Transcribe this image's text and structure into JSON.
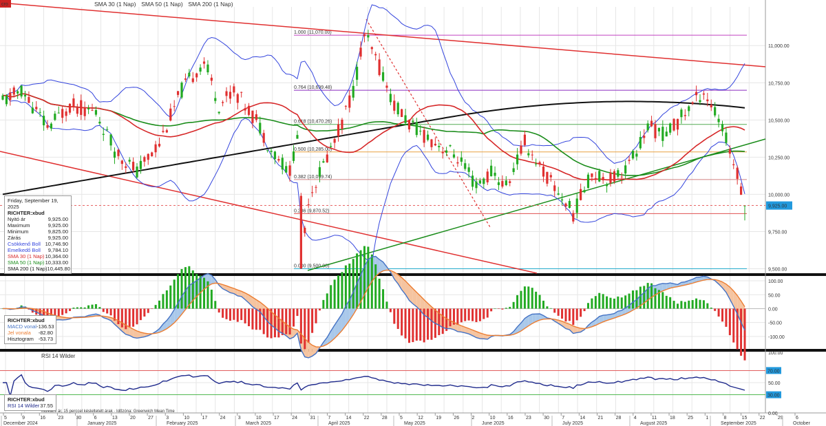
{
  "header": {
    "badge": "cro",
    "indicators": [
      {
        "label": "SMA 30 (1 Nap)",
        "color": "#d62728"
      },
      {
        "label": "SMA 50 (1 Nap)",
        "color": "#1a8c1a"
      },
      {
        "label": "SMA 200 (1 Nap)",
        "color": "#111111"
      }
    ]
  },
  "colors": {
    "up": "#22aa22",
    "down": "#e03030",
    "boll": "#3344dd",
    "sma30": "#d62728",
    "sma50": "#1a8c1a",
    "sma200": "#111111",
    "macd": "#4472c4",
    "signal": "#ec7d31",
    "rsi": "#1f2a8c"
  },
  "price_info": {
    "date": "Friday, September 19, 2025",
    "ticker": "RICHTER:xbud",
    "rows": [
      {
        "label": "Nyitó ár",
        "value": "9,925.00",
        "color": "#222222"
      },
      {
        "label": "Maximum",
        "value": "9,925.00",
        "color": "#222222"
      },
      {
        "label": "Minimum",
        "value": "9,825.00",
        "color": "#222222"
      },
      {
        "label": "Zárás",
        "value": "9,925.00",
        "color": "#222222"
      },
      {
        "label": "Csökkenő Boll",
        "value": "10,746.90",
        "color": "#3344dd"
      },
      {
        "label": "Emelkedő Boll",
        "value": "9,784.10",
        "color": "#3344dd"
      },
      {
        "label": "SMA 30 (1 Nap)",
        "value": "10,364.00",
        "color": "#d62728"
      },
      {
        "label": "SMA 50 (1 Nap)",
        "value": "10,333.00",
        "color": "#1a8c1a"
      },
      {
        "label": "SMA 200 (1 Nap)",
        "value": "10,445.80",
        "color": "#111111"
      }
    ]
  },
  "macd_info": {
    "ticker": "RICHTER:xbud",
    "rows": [
      {
        "label": "MACD vonal",
        "value": "-136.53",
        "color": "#4472c4"
      },
      {
        "label": "Jel vonala",
        "value": "-82.80",
        "color": "#ec7d31"
      },
      {
        "label": "Hisztogram",
        "value": "-53.73",
        "color": "#222222"
      }
    ]
  },
  "rsi_info": {
    "ticker": "RICHTER:xbud",
    "rows": [
      {
        "label": "RSI 14 Wilder",
        "value": "37.55",
        "color": "#1f2a8c"
      }
    ]
  },
  "rsi_title": "RSI 14 Wilder",
  "footer_note": "Indikatív ár, 15 perccel késleltetett árak · Időzóna: Greenwich Mean Time",
  "last_price_tag": "9,925.00",
  "chart_data": [
    {
      "type": "candlestick",
      "y_ticks": [
        "11,000.00",
        "10,750.00",
        "10,500.00",
        "10,250.00",
        "10,000.00",
        "9,750.00",
        "9,500.00"
      ],
      "y_tick_values": [
        11000,
        10750,
        10500,
        10250,
        10000,
        9750,
        9500
      ],
      "ylim": [
        9470,
        11260
      ],
      "fib_levels": [
        {
          "label": "1.000 (11,070.00)",
          "value": 11070,
          "color": "#c040c0"
        },
        {
          "label": "0.764 (10,699.48)",
          "value": 10699.48,
          "color": "#8a2bbf"
        },
        {
          "label": "0.618 (10,470.26)",
          "value": 10470.26,
          "color": "#55aa55"
        },
        {
          "label": "0.500 (10,285.00)",
          "value": 10285,
          "color": "#e8a040"
        },
        {
          "label": "0.382 (10,099.74)",
          "value": 10099.74,
          "color": "#d08080"
        },
        {
          "label": "0.236 (9,870.52)",
          "value": 9870.52,
          "color": "#e05050"
        },
        {
          "label": "0.000 (9,500.00)",
          "value": 9500,
          "color": "#22aacc"
        }
      ],
      "last_price": 9925,
      "x_date_ticks": [
        "5",
        "9",
        "16",
        "23",
        "30",
        "6",
        "13",
        "20",
        "27",
        "3",
        "10",
        "17",
        "24",
        "3",
        "10",
        "17",
        "24",
        "31",
        "7",
        "14",
        "22",
        "28",
        "5",
        "12",
        "19",
        "26",
        "2",
        "10",
        "16",
        "23",
        "30",
        "7",
        "14",
        "21",
        "28",
        "4",
        "11",
        "18",
        "25",
        "1",
        "8",
        "15",
        "22",
        "29",
        "6"
      ],
      "months": [
        "December 2024",
        "January 2025",
        "February 2025",
        "March 2025",
        "April 2025",
        "May 2025",
        "June 2025",
        "July 2025",
        "August 2025",
        "September 2025",
        "October"
      ]
    },
    {
      "type": "bar",
      "name": "MACD",
      "y_ticks": [
        "100.00",
        "50.00",
        "0.00",
        "-50.00",
        "-100.00"
      ],
      "y_tick_values": [
        100,
        50,
        0,
        -50,
        -100
      ],
      "ylim": [
        -145,
        115
      ]
    },
    {
      "type": "line",
      "name": "RSI 14 Wilder",
      "y_ticks": [
        "100.00",
        "70.00",
        "50.00",
        "30.00",
        "0.00"
      ],
      "y_tick_values": [
        100,
        70,
        50,
        30,
        0
      ],
      "ylim": [
        0,
        100
      ],
      "last_value": 37.55
    }
  ]
}
